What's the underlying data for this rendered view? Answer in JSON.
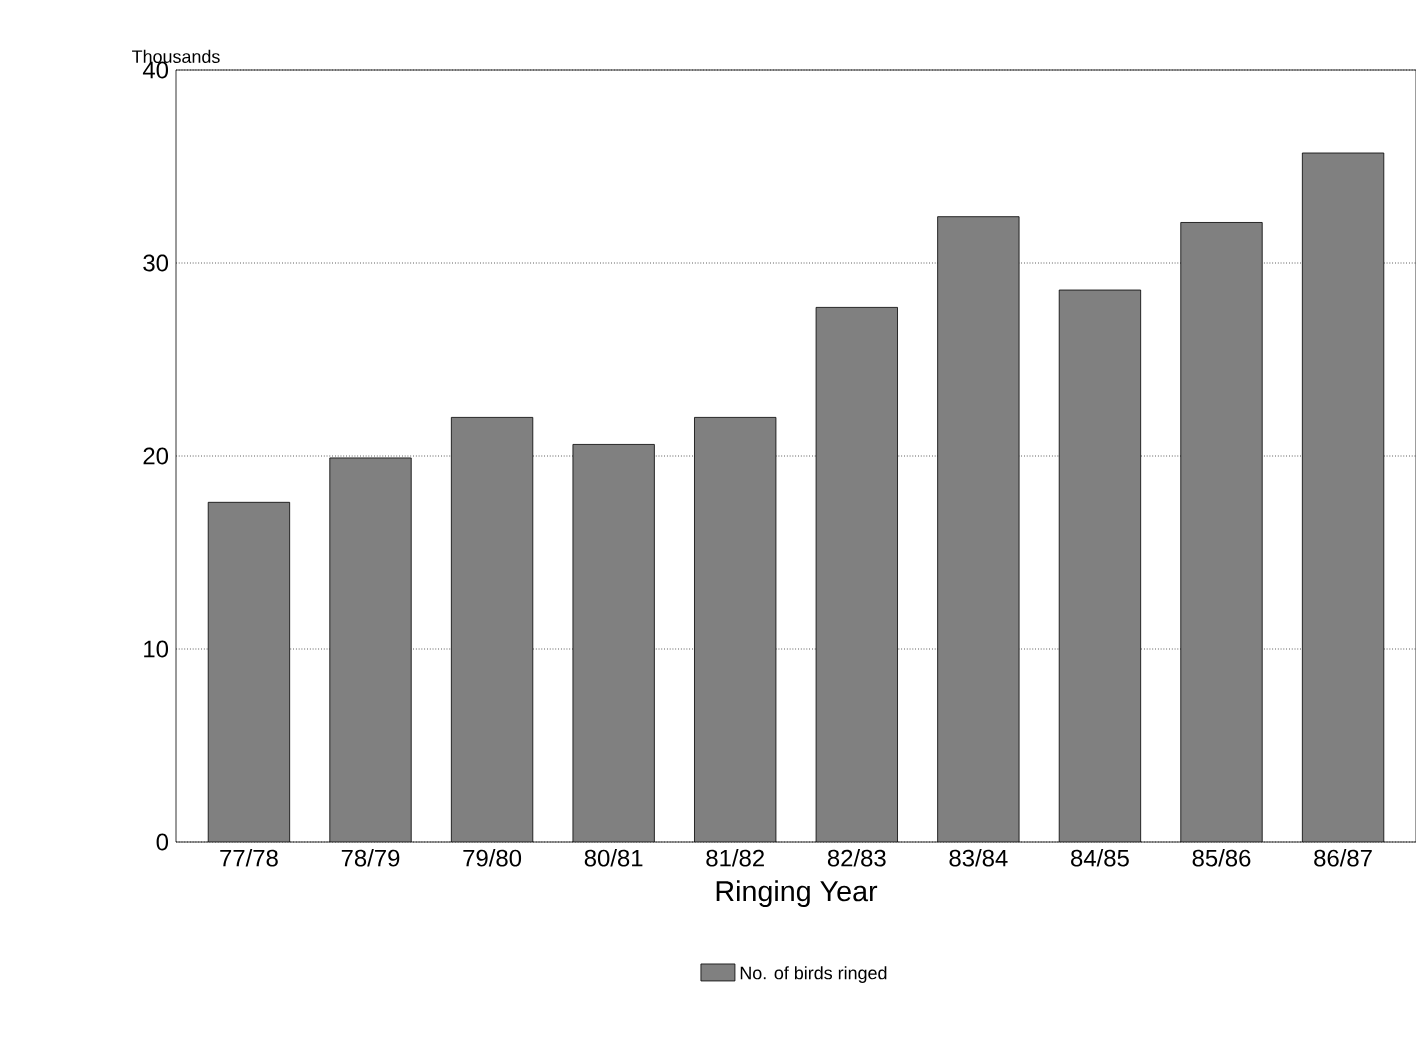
{
  "chart_data": {
    "type": "bar",
    "xlabel": "Ringing Year",
    "ylabel": "Thousands",
    "categories": [
      "77/78",
      "78/79",
      "79/80",
      "80/81",
      "81/82",
      "82/83",
      "83/84",
      "84/85",
      "85/86",
      "86/87"
    ],
    "series": [
      {
        "name": "No. of birds ringed",
        "color": "#808080",
        "values": [
          17.6,
          19.9,
          22.0,
          20.6,
          22.0,
          27.7,
          32.4,
          28.6,
          32.1,
          35.7
        ]
      }
    ],
    "ylim": [
      0,
      40
    ],
    "yticks": [
      0,
      10,
      20,
      30,
      40
    ],
    "grid": "y",
    "legend": "bottom"
  }
}
